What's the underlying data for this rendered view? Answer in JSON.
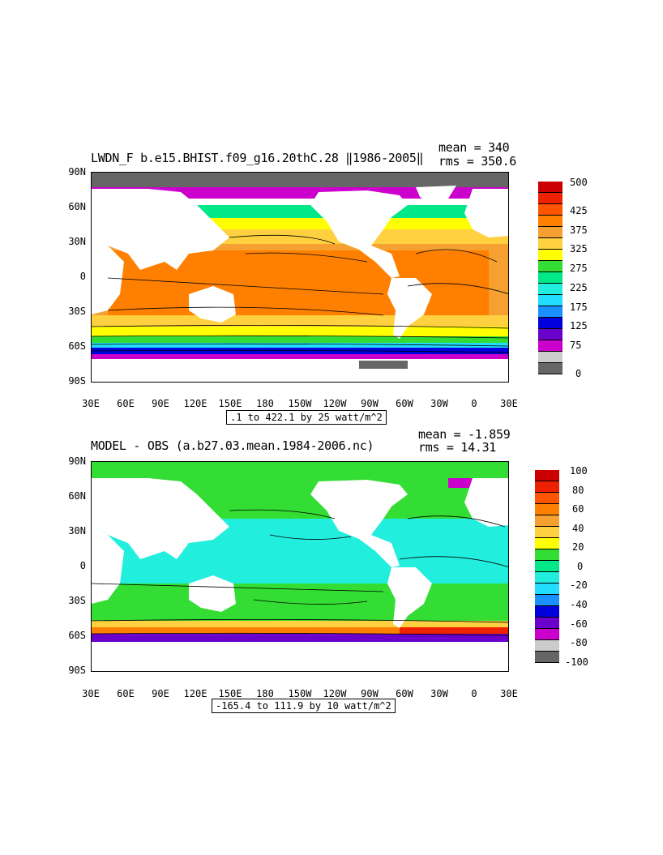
{
  "panels": [
    {
      "id": "top",
      "title": "LWDN_F b.e15.BHIST.f09_g16.20thC.28 ‖1986-2005‖",
      "mean_label": "mean = 340",
      "rms_label": "rms = 350.6",
      "range_label": ".1 to 422.1 by 25 watt/m^2",
      "lat_labels": [
        "90N",
        "60N",
        "30N",
        "0",
        "30S",
        "60S",
        "90S"
      ],
      "lon_labels": [
        "30E",
        "60E",
        "90E",
        "120E",
        "150E",
        "180",
        "150W",
        "120W",
        "90W",
        "60W",
        "30W",
        "0",
        "30E"
      ],
      "colorbar": {
        "labels": [
          "500",
          "425",
          "375",
          "325",
          "275",
          "225",
          "175",
          "125",
          "75",
          "0"
        ],
        "colors": [
          "#cc0000",
          "#ee2200",
          "#ff5500",
          "#ff8000",
          "#f5a030",
          "#ffd040",
          "#ffff00",
          "#33dd33",
          "#00e888",
          "#22eedd",
          "#22ddff",
          "#1a90ff",
          "#0000dd",
          "#6a00cc",
          "#cc00cc",
          "#cccccc",
          "#666666"
        ]
      }
    },
    {
      "id": "bottom",
      "title": "MODEL - OBS (a.b27.03.mean.1984-2006.nc)",
      "mean_label": "mean = -1.859",
      "rms_label": "rms = 14.31",
      "range_label": "-165.4 to 111.9 by 10 watt/m^2",
      "lat_labels": [
        "90N",
        "60N",
        "30N",
        "0",
        "30S",
        "60S",
        "90S"
      ],
      "lon_labels": [
        "30E",
        "60E",
        "90E",
        "120E",
        "150E",
        "180",
        "150W",
        "120W",
        "90W",
        "60W",
        "30W",
        "0",
        "30E"
      ],
      "colorbar": {
        "labels": [
          "100",
          "80",
          "60",
          "40",
          "20",
          "0",
          "-20",
          "-40",
          "-60",
          "-80",
          "-100"
        ],
        "colors": [
          "#cc0000",
          "#ee2200",
          "#ff5500",
          "#ff8000",
          "#f5a030",
          "#ffd040",
          "#ffff00",
          "#33dd33",
          "#00e888",
          "#22eedd",
          "#22ddff",
          "#1a90ff",
          "#0000dd",
          "#6a00cc",
          "#cc00cc",
          "#cccccc",
          "#666666"
        ]
      }
    }
  ]
}
